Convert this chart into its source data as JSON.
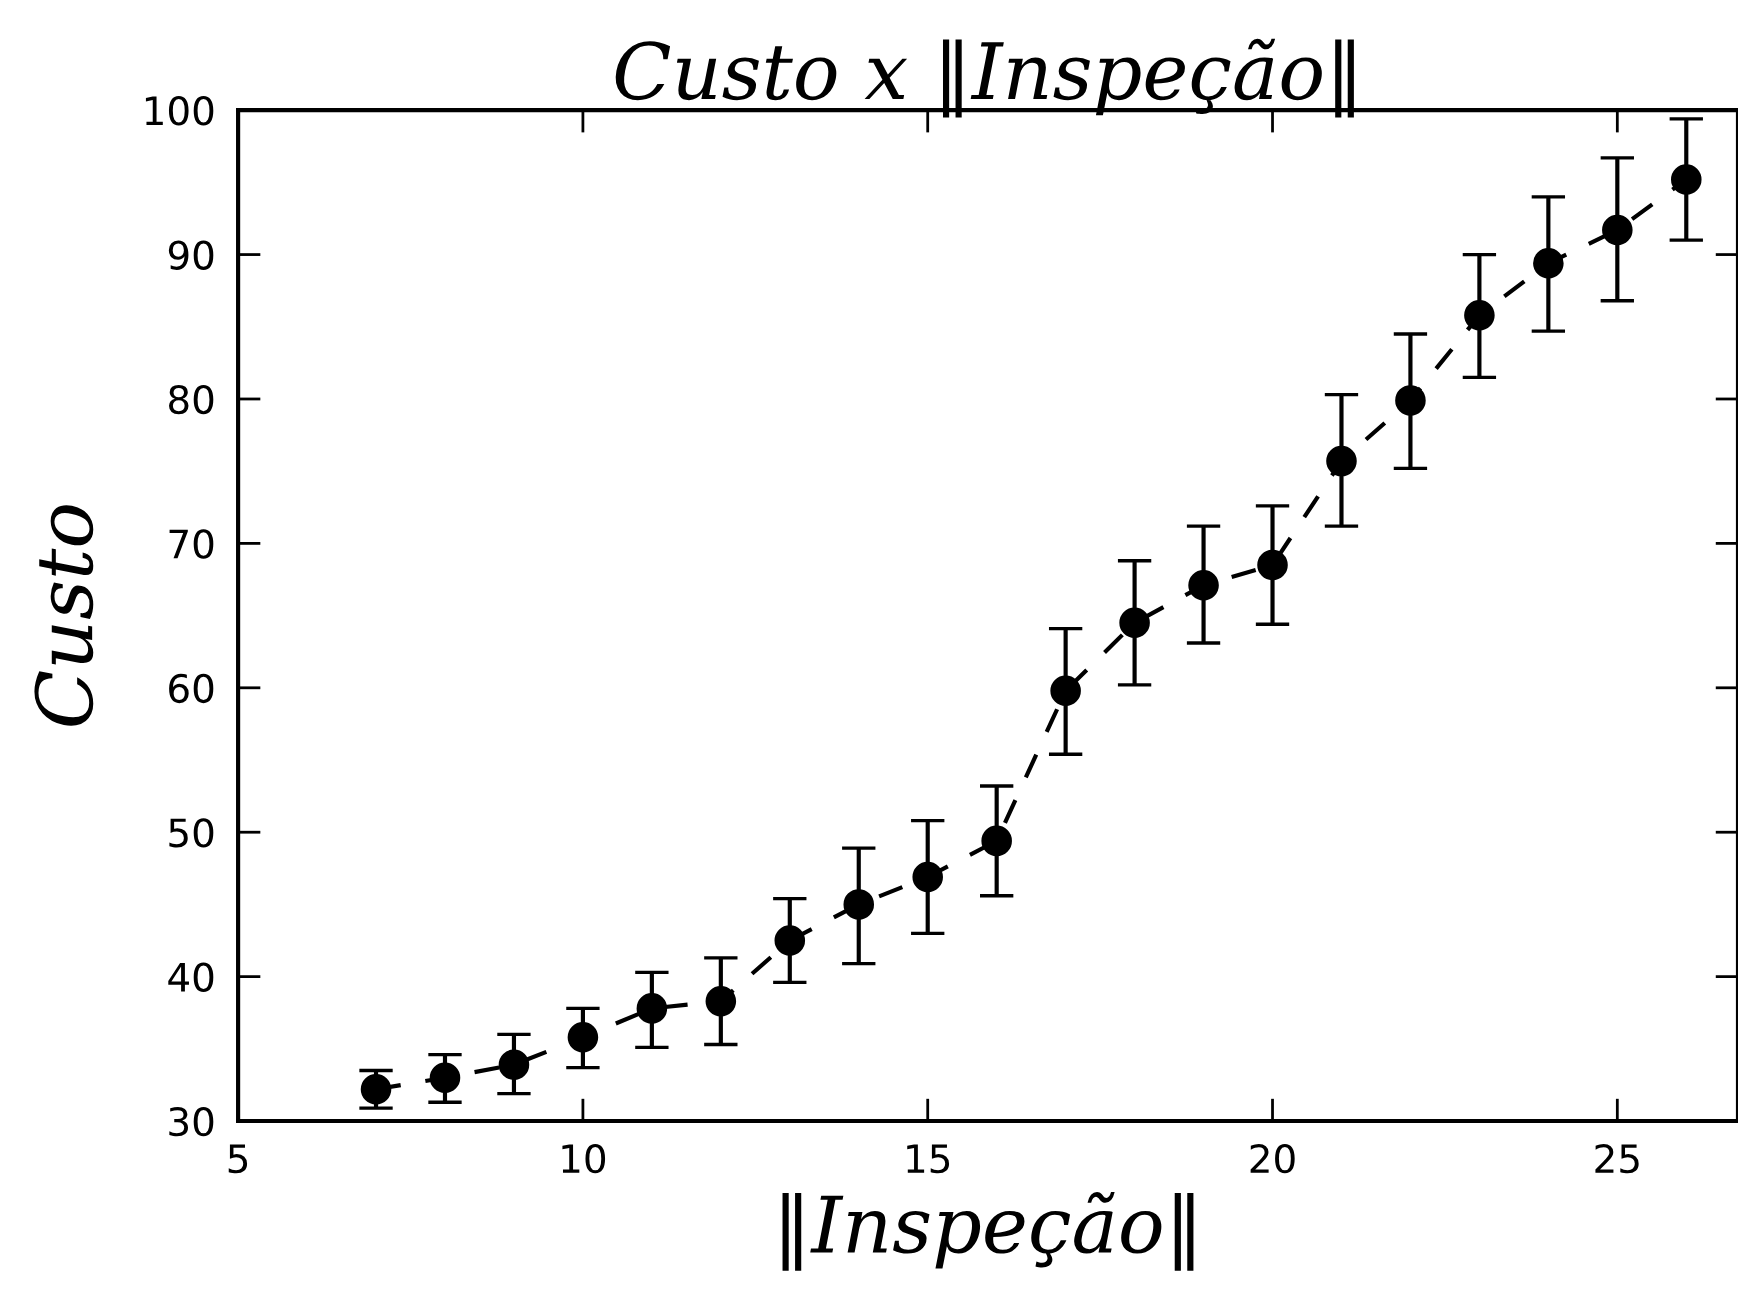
{
  "chart_data": {
    "type": "line",
    "title": "Custo x ‖Inspeção‖",
    "xlabel": "‖Inspeção‖",
    "ylabel": "Custo",
    "x": [
      7,
      8,
      9,
      10,
      11,
      12,
      13,
      14,
      15,
      16,
      17,
      18,
      19,
      20,
      21,
      22,
      23,
      24,
      25,
      26
    ],
    "series": [
      {
        "color": "#000000",
        "values": [
          32.2,
          33.0,
          33.9,
          35.8,
          37.8,
          38.3,
          42.5,
          45.0,
          46.9,
          49.4,
          59.8,
          64.5,
          67.1,
          68.5,
          75.7,
          79.9,
          85.8,
          89.4,
          91.7,
          95.2
        ],
        "errors": [
          [
            30.9,
            33.5
          ],
          [
            31.3,
            34.6
          ],
          [
            31.9,
            36.0
          ],
          [
            33.7,
            37.8
          ],
          [
            35.1,
            40.3
          ],
          [
            35.3,
            41.3
          ],
          [
            39.6,
            45.4
          ],
          [
            40.9,
            48.9
          ],
          [
            43.0,
            50.8
          ],
          [
            45.6,
            53.2
          ],
          [
            55.4,
            64.1
          ],
          [
            60.2,
            68.8
          ],
          [
            63.1,
            71.2
          ],
          [
            64.4,
            72.6
          ],
          [
            71.2,
            80.3
          ],
          [
            75.2,
            84.5
          ],
          [
            81.5,
            90.0
          ],
          [
            84.7,
            94.0
          ],
          [
            86.8,
            96.7
          ],
          [
            91.0,
            99.4
          ]
        ]
      }
    ],
    "xlim": [
      5,
      26.75
    ],
    "xticks": [
      5,
      10,
      15,
      20,
      25
    ],
    "ylim": [
      30,
      100
    ],
    "yticks": [
      30,
      40,
      50,
      60,
      70,
      80,
      90,
      100
    ],
    "marker": "circle",
    "line_style": "dashed",
    "grid": false,
    "legend": false
  }
}
